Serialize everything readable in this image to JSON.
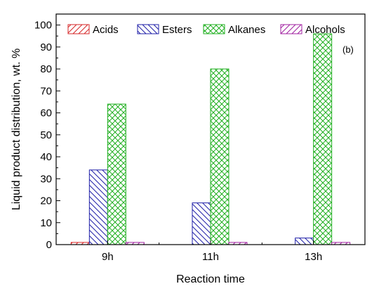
{
  "chart_data": {
    "type": "bar",
    "title": "",
    "panel_label": "(b)",
    "xlabel": "Reaction time",
    "ylabel": "Liquid product distribution,  wt. %",
    "ylim": [
      0,
      105
    ],
    "yticks": [
      0,
      10,
      20,
      30,
      40,
      50,
      60,
      70,
      80,
      90,
      100
    ],
    "categories": [
      "9h",
      "11h",
      "13h"
    ],
    "legend_placement": "top",
    "grid": false,
    "series": [
      {
        "name": "Acids",
        "values": [
          1,
          0,
          0
        ],
        "color": "#d62728",
        "pattern": "diag-up"
      },
      {
        "name": "Esters",
        "values": [
          34,
          19,
          3
        ],
        "color": "#1f1fa8",
        "pattern": "diag-down"
      },
      {
        "name": "Alkanes",
        "values": [
          64,
          80,
          96
        ],
        "color": "#22b022",
        "pattern": "cross"
      },
      {
        "name": "Alcohols",
        "values": [
          1,
          1,
          1
        ],
        "color": "#a020a0",
        "pattern": "diag-up"
      }
    ]
  }
}
